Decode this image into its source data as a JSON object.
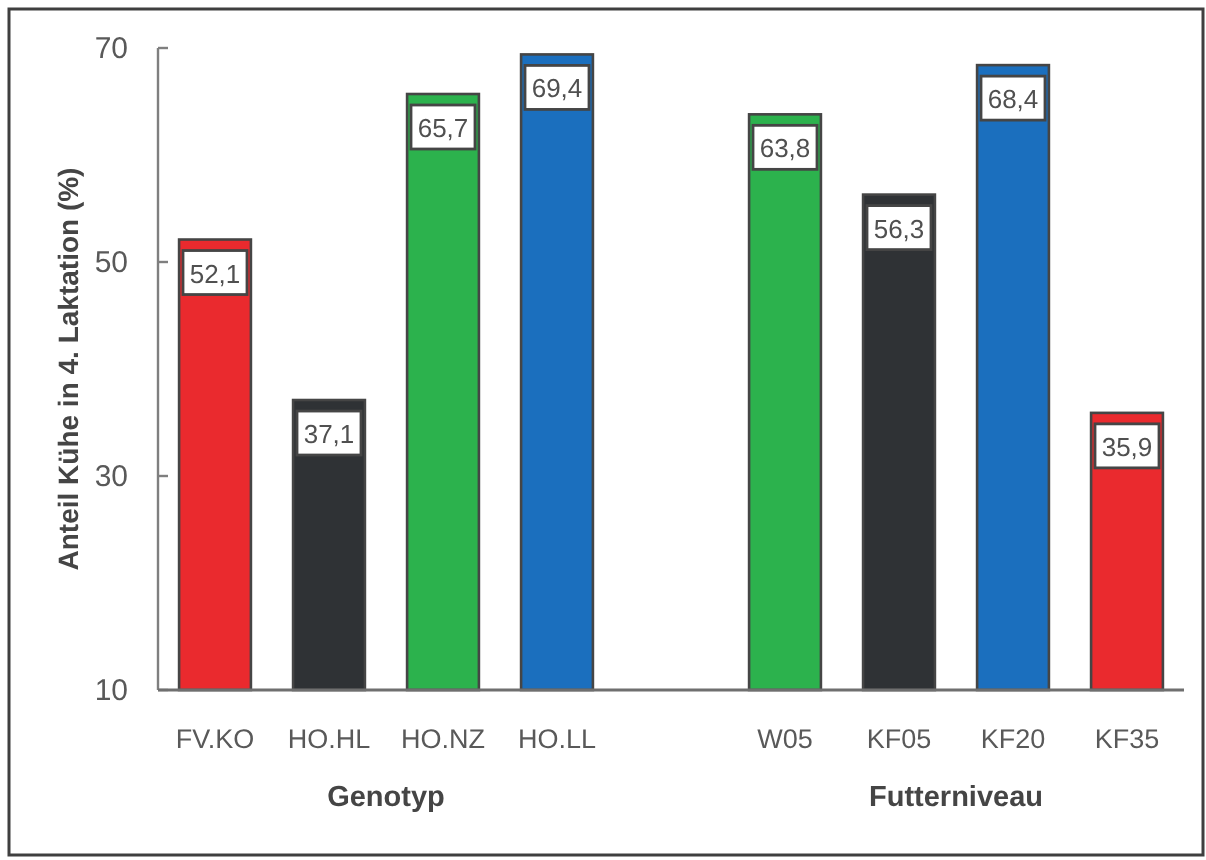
{
  "chart_data": [
    {
      "type": "bar",
      "categories": [
        "FV.KO",
        "HO.HL",
        "HO.NZ",
        "HO.LL"
      ],
      "values": [
        52.1,
        37.1,
        65.7,
        69.4
      ],
      "value_labels": [
        "52,1",
        "37,1",
        "65,7",
        "69,4"
      ],
      "colors": [
        "#ea2a2e",
        "#2f3235",
        "#2cb24d",
        "#1b6fbe"
      ],
      "xlabel": "Genotyp",
      "ylabel": "Anteil Kühe in 4. Laktation (%)",
      "ylim": [
        10,
        70
      ],
      "yticks": [
        10,
        30,
        50,
        70
      ]
    },
    {
      "type": "bar",
      "categories": [
        "W05",
        "KF05",
        "KF20",
        "KF35"
      ],
      "values": [
        63.8,
        56.3,
        68.4,
        35.9
      ],
      "value_labels": [
        "63,8",
        "56,3",
        "68,4",
        "35,9"
      ],
      "colors": [
        "#2cb24d",
        "#2f3235",
        "#1b6fbe",
        "#ea2a2e"
      ],
      "xlabel": "Futterniveau",
      "ylim": [
        10,
        70
      ],
      "tick_labels": "x"
    }
  ]
}
